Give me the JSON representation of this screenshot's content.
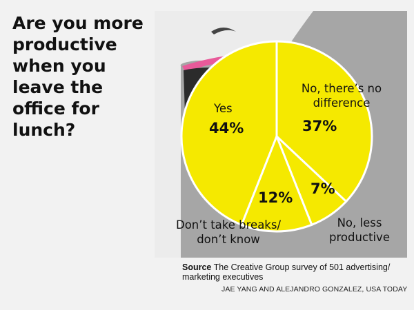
{
  "chart_data": {
    "type": "pie",
    "title": "Are you more productive when you leave the office for lunch?",
    "slices": [
      {
        "label": "Yes",
        "value": 44,
        "display": "44%"
      },
      {
        "label": "No, there’s no difference",
        "value": 37,
        "display": "37%"
      },
      {
        "label": "No, less productive",
        "value": 7,
        "display": "7%"
      },
      {
        "label": "Don’t take breaks/ don’t know",
        "value": 12,
        "display": "12%"
      }
    ]
  },
  "source": {
    "prefix": "Source",
    "text": "The Creative Group survey of 501 advertising/ marketing executives"
  },
  "credit": "JAE YANG AND ALEJANDRO GONZALEZ, USA TODAY",
  "colors": {
    "slice": "#f5e900",
    "panel": "#a6a6a6",
    "face": "#ececec",
    "lips": "#e85a9a",
    "mouth": "#2b2b2b",
    "background": "#f2f2f2"
  }
}
